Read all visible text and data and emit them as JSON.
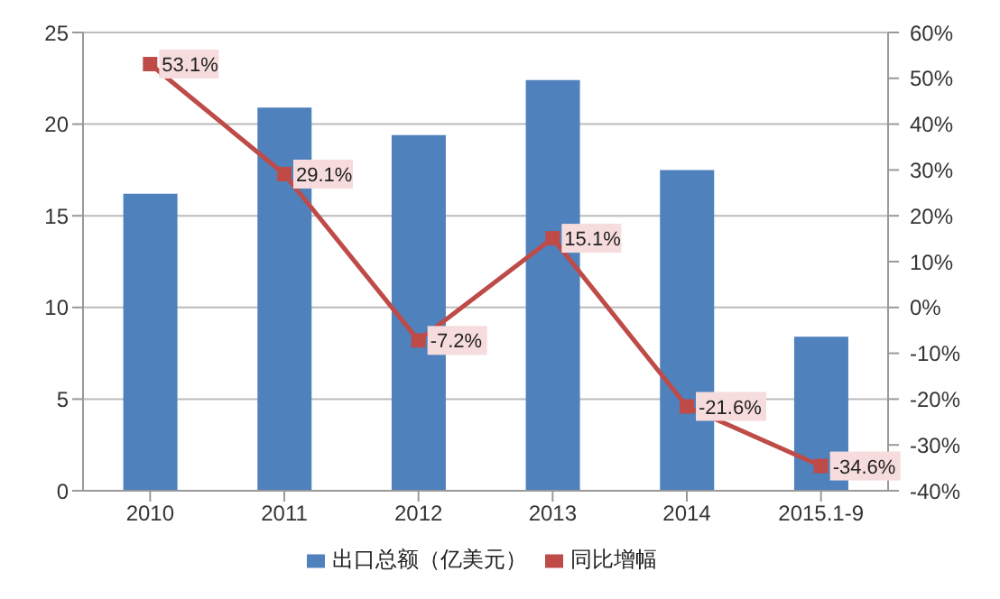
{
  "chart_data": {
    "type": "bar",
    "categories": [
      "2010",
      "2011",
      "2012",
      "2013",
      "2014",
      "2015.1-9"
    ],
    "series": [
      {
        "name": "出口总额（亿美元）",
        "color": "#4f81bd",
        "values": [
          16.2,
          20.9,
          19.4,
          22.4,
          17.5,
          8.4
        ]
      },
      {
        "name": "同比增幅",
        "type": "line",
        "axis": "y2",
        "color": "#be4b48",
        "marker": "square",
        "values": [
          53.1,
          29.1,
          -7.2,
          15.1,
          -21.6,
          -34.6
        ],
        "value_labels": [
          "53.1%",
          "29.1%",
          "-7.2%",
          "15.1%",
          "-21.6%",
          "-34.6%"
        ]
      }
    ],
    "ylim": [
      0,
      25
    ],
    "yticks": [
      0,
      5,
      10,
      15,
      20,
      25
    ],
    "y2lim": [
      -40,
      60
    ],
    "y2ticks": [
      {
        "value": -40,
        "label": "-40%"
      },
      {
        "value": -30,
        "label": "-30%"
      },
      {
        "value": -20,
        "label": "-20%"
      },
      {
        "value": -10,
        "label": "-10%"
      },
      {
        "value": 0,
        "label": "0%"
      },
      {
        "value": 10,
        "label": "10%"
      },
      {
        "value": 20,
        "label": "20%"
      },
      {
        "value": 30,
        "label": "30%"
      },
      {
        "value": 40,
        "label": "40%"
      },
      {
        "value": 50,
        "label": "50%"
      },
      {
        "value": 60,
        "label": "60%"
      }
    ],
    "grid": "y",
    "legend": "bottom"
  }
}
